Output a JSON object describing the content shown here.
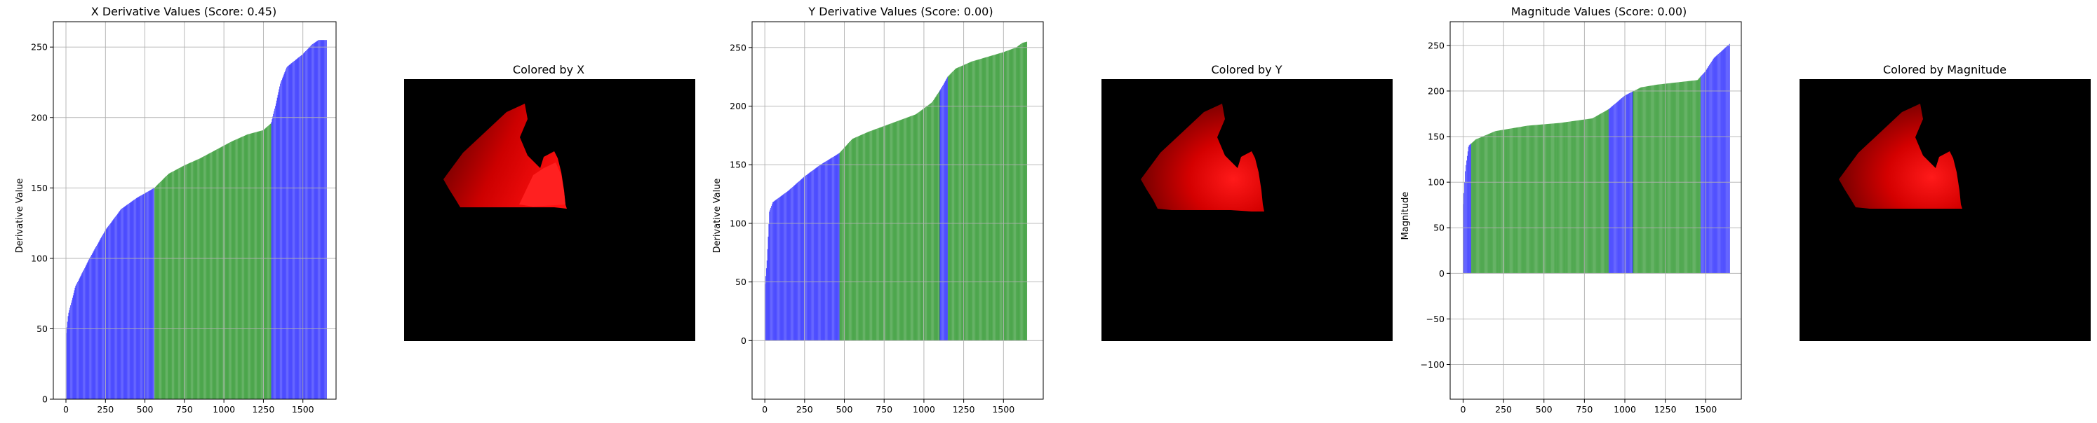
{
  "colors": {
    "low": "#0000ff",
    "mid": "#008000",
    "grid": "#b0b0b0",
    "frame": "#000000",
    "image_bg": "#000000"
  },
  "chart_data": [
    {
      "type": "bar",
      "title": "X Derivative Values (Score: 0.45)",
      "ylabel": "Derivative Value",
      "xlim": [
        -80,
        1710
      ],
      "ylim": [
        0,
        268
      ],
      "xticks": [
        0,
        250,
        500,
        750,
        1000,
        1250,
        1500
      ],
      "yticks": [
        0,
        50,
        100,
        150,
        200,
        250
      ],
      "grid": true,
      "bar_count": 1650,
      "segments": [
        {
          "from": 0,
          "to": 560,
          "color": "blue"
        },
        {
          "from": 560,
          "to": 1300,
          "color": "green"
        },
        {
          "from": 1300,
          "to": 1650,
          "color": "blue"
        }
      ],
      "curve": [
        [
          0,
          45
        ],
        [
          15,
          60
        ],
        [
          60,
          80
        ],
        [
          150,
          100
        ],
        [
          250,
          120
        ],
        [
          350,
          135
        ],
        [
          450,
          143
        ],
        [
          560,
          150
        ],
        [
          650,
          160
        ],
        [
          750,
          166
        ],
        [
          850,
          171
        ],
        [
          950,
          177
        ],
        [
          1050,
          183
        ],
        [
          1150,
          188
        ],
        [
          1250,
          191
        ],
        [
          1300,
          196
        ],
        [
          1330,
          210
        ],
        [
          1360,
          225
        ],
        [
          1400,
          236
        ],
        [
          1500,
          245
        ],
        [
          1560,
          252
        ],
        [
          1600,
          255
        ],
        [
          1650,
          255
        ]
      ]
    },
    {
      "type": "image",
      "title": "Colored by X"
    },
    {
      "type": "bar",
      "title": "Y Derivative Values (Score: 0.00)",
      "ylabel": "Derivative Value",
      "xlim": [
        -80,
        1750
      ],
      "ylim": [
        -50,
        272
      ],
      "xticks": [
        0,
        250,
        500,
        750,
        1000,
        1250,
        1500
      ],
      "yticks": [
        0,
        50,
        100,
        150,
        200,
        250
      ],
      "grid": true,
      "bar_count": 1650,
      "segments": [
        {
          "from": 0,
          "to": 470,
          "color": "blue"
        },
        {
          "from": 470,
          "to": 1100,
          "color": "green"
        },
        {
          "from": 1100,
          "to": 1150,
          "color": "blue"
        },
        {
          "from": 1150,
          "to": 1650,
          "color": "green"
        }
      ],
      "curve": [
        [
          0,
          45
        ],
        [
          15,
          70
        ],
        [
          30,
          110
        ],
        [
          50,
          118
        ],
        [
          150,
          128
        ],
        [
          250,
          140
        ],
        [
          350,
          150
        ],
        [
          470,
          160
        ],
        [
          550,
          172
        ],
        [
          650,
          178
        ],
        [
          750,
          183
        ],
        [
          850,
          188
        ],
        [
          950,
          193
        ],
        [
          1050,
          203
        ],
        [
          1100,
          213
        ],
        [
          1150,
          225
        ],
        [
          1200,
          232
        ],
        [
          1300,
          238
        ],
        [
          1400,
          242
        ],
        [
          1500,
          246
        ],
        [
          1580,
          250
        ],
        [
          1620,
          254
        ],
        [
          1650,
          255
        ]
      ]
    },
    {
      "type": "image",
      "title": "Colored by Y"
    },
    {
      "type": "bar",
      "title": "Magnitude Values (Score: 0.00)",
      "ylabel": "Magnitude",
      "xlim": [
        -80,
        1720
      ],
      "ylim": [
        -138,
        276
      ],
      "xticks": [
        0,
        250,
        500,
        750,
        1000,
        1250,
        1500
      ],
      "yticks": [
        -100,
        -50,
        0,
        50,
        100,
        150,
        200,
        250
      ],
      "grid": true,
      "bar_count": 1650,
      "segments": [
        {
          "from": 0,
          "to": 50,
          "color": "blue"
        },
        {
          "from": 50,
          "to": 900,
          "color": "green"
        },
        {
          "from": 900,
          "to": 1050,
          "color": "blue"
        },
        {
          "from": 1050,
          "to": 1470,
          "color": "green"
        },
        {
          "from": 1470,
          "to": 1650,
          "color": "blue"
        }
      ],
      "curve": [
        [
          0,
          70
        ],
        [
          15,
          115
        ],
        [
          35,
          140
        ],
        [
          80,
          147
        ],
        [
          200,
          156
        ],
        [
          400,
          162
        ],
        [
          600,
          165
        ],
        [
          800,
          170
        ],
        [
          900,
          180
        ],
        [
          1000,
          195
        ],
        [
          1100,
          204
        ],
        [
          1200,
          207
        ],
        [
          1300,
          209
        ],
        [
          1450,
          212
        ],
        [
          1500,
          222
        ],
        [
          1550,
          236
        ],
        [
          1600,
          244
        ],
        [
          1650,
          252
        ]
      ]
    },
    {
      "type": "image",
      "title": "Colored by Magnitude"
    }
  ]
}
